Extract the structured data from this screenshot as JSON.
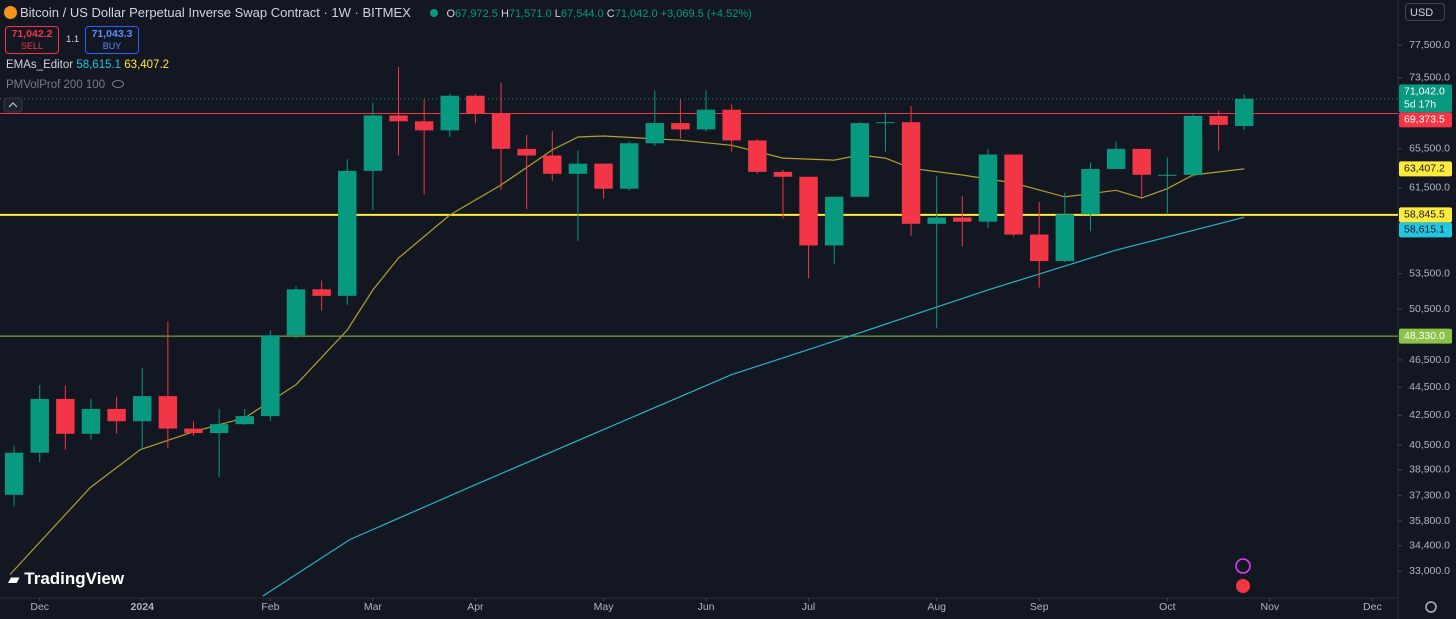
{
  "header": {
    "symbol": "Bitcoin / US Dollar Perpetual Inverse Swap Contract · 1W · BITMEX",
    "ohlc": [
      {
        "key": "O",
        "text": "67,972.5"
      },
      {
        "key": "H",
        "text": "71,571.0"
      },
      {
        "key": "L",
        "text": "67,544.0"
      },
      {
        "key": "C",
        "text": "71,042.0"
      }
    ],
    "change": "+3,069.5 (+4.52%)",
    "sell": {
      "price": "71,042.2",
      "label": "SELL"
    },
    "spread": "1.1",
    "buy": {
      "price": "71,043.3",
      "label": "BUY"
    },
    "indicators": [
      {
        "name": "EMAs_Editor",
        "values": [
          "58,615.1",
          "63,407.2"
        ]
      },
      {
        "name": "PMVolProf 200 100"
      }
    ],
    "currency": "USD",
    "brand": "TradingView"
  },
  "chart_data": {
    "type": "candlestick",
    "log": true,
    "ylim": [
      31600,
      83400
    ],
    "yticks": [
      {
        "value": 77500,
        "label": "77,500.0"
      },
      {
        "value": 73500,
        "label": "73,500.0"
      },
      {
        "value": 65500,
        "label": "65,500.0"
      },
      {
        "value": 61500,
        "label": "61,500.0"
      },
      {
        "value": 53500,
        "label": "53,500.0"
      },
      {
        "value": 50500,
        "label": "50,500.0"
      },
      {
        "value": 46500,
        "label": "46,500.0"
      },
      {
        "value": 44500,
        "label": "44,500.0"
      },
      {
        "value": 42500,
        "label": "42,500.0"
      },
      {
        "value": 40500,
        "label": "40,500.0"
      },
      {
        "value": 38900,
        "label": "38,900.0"
      },
      {
        "value": 37300,
        "label": "37,300.0"
      },
      {
        "value": 35800,
        "label": "35,800.0"
      },
      {
        "value": 34400,
        "label": "34,400.0"
      },
      {
        "value": 33000,
        "label": "33,000.0"
      }
    ],
    "xlim": [
      -0.55,
      54
    ],
    "xticks": [
      {
        "value": 1,
        "label": "Dec"
      },
      {
        "value": 5,
        "label": "2024"
      },
      {
        "value": 10,
        "label": "Feb"
      },
      {
        "value": 14,
        "label": "Mar"
      },
      {
        "value": 18,
        "label": "Apr"
      },
      {
        "value": 23,
        "label": "May"
      },
      {
        "value": 27,
        "label": "Jun"
      },
      {
        "value": 31,
        "label": "Jul"
      },
      {
        "value": 36,
        "label": "Aug"
      },
      {
        "value": 40,
        "label": "Sep"
      },
      {
        "value": 45,
        "label": "Oct"
      },
      {
        "value": 49,
        "label": "Nov"
      },
      {
        "value": 53,
        "label": "Dec"
      }
    ],
    "up_color": "#089981",
    "down_color": "#f23645",
    "open": [
      37360,
      40000,
      43650,
      41250,
      42950,
      42100,
      43850,
      41600,
      41300,
      41900,
      42450,
      48400,
      52150,
      51600,
      63200,
      69150,
      68500,
      67500,
      71400,
      69370,
      65500,
      64800,
      62900,
      63950,
      61400,
      66100,
      68300,
      67600,
      69800,
      66400,
      63100,
      62600,
      56000,
      60600,
      68300,
      68400,
      58000,
      58600,
      58200,
      64900,
      57000,
      54600,
      58900,
      63400,
      65500,
      62800,
      62800,
      69100,
      67972.5
    ],
    "high": [
      40450,
      44650,
      44600,
      43650,
      43800,
      45900,
      49500,
      42100,
      42950,
      42950,
      48800,
      52400,
      52900,
      64400,
      70600,
      74800,
      71000,
      71600,
      71600,
      72900,
      67000,
      67400,
      65300,
      63950,
      66300,
      72000,
      71000,
      72000,
      70400,
      66600,
      63300,
      62600,
      60600,
      68400,
      69500,
      70200,
      62700,
      60700,
      65500,
      64600,
      60100,
      61000,
      64100,
      66300,
      65500,
      64600,
      69300,
      69700,
      71571
    ],
    "low": [
      36650,
      39400,
      40200,
      40850,
      41250,
      40200,
      40300,
      41100,
      38450,
      41850,
      42100,
      48150,
      50400,
      50850,
      59300,
      64800,
      60800,
      66800,
      68300,
      61300,
      59400,
      62200,
      56400,
      60400,
      61200,
      65800,
      66600,
      67400,
      65200,
      62900,
      58500,
      53100,
      54300,
      60600,
      65200,
      56900,
      48950,
      55900,
      57600,
      56800,
      52300,
      54500,
      57300,
      63400,
      60600,
      58900,
      62600,
      65300,
      67544
    ],
    "close": [
      40000,
      43650,
      41250,
      42950,
      42100,
      43850,
      41600,
      41300,
      41900,
      42450,
      48400,
      52150,
      51600,
      63200,
      69150,
      68500,
      67500,
      71400,
      69370,
      65500,
      64800,
      62900,
      63950,
      61400,
      66100,
      68300,
      67600,
      69800,
      66400,
      63100,
      62600,
      56000,
      60600,
      68300,
      68400,
      58000,
      58600,
      58200,
      64900,
      57000,
      54600,
      58900,
      63400,
      65500,
      62800,
      62800,
      69100,
      68100,
      71042
    ],
    "lines": [
      {
        "color": "#b3a02e",
        "x": [
          -0.16,
          2.97,
          4.92,
          7.02,
          9.01,
          11,
          13,
          14,
          15,
          17,
          19,
          21,
          22,
          23,
          26,
          28,
          30,
          32,
          33,
          34,
          35,
          37,
          39,
          41,
          43,
          44,
          45,
          46,
          48
        ],
        "values": [
          32830,
          37800,
          40200,
          41400,
          42340,
          44670,
          48820,
          52100,
          54870,
          58830,
          61770,
          65390,
          66770,
          66880,
          66430,
          65880,
          64530,
          64320,
          64850,
          64530,
          63470,
          62780,
          61970,
          60590,
          61240,
          60480,
          61400,
          62780,
          63407.2
        ],
        "last_label": "63,407.2",
        "tag_color": "#ffeb3b",
        "tag_text": "#131722"
      },
      {
        "color": "#2ab3c4",
        "x": [
          9.7,
          13.1,
          18,
          23,
          28,
          33,
          38,
          43,
          48
        ],
        "values": [
          31700,
          34740,
          37980,
          41530,
          45410,
          48600,
          52100,
          55580,
          58615.1
        ],
        "last_label": "58,615.1",
        "tag_color": "#22c6e0",
        "tag_text": "#131722"
      }
    ],
    "hlines": [
      {
        "value": 69373.5,
        "label": "69,373.5",
        "color": "#f23645",
        "width": 1
      },
      {
        "value": 58845.5,
        "label": "58,845.5",
        "color": "#ffeb3b",
        "width": 2
      },
      {
        "value": 48330,
        "label": "48,330.0",
        "color": "#8bc34a",
        "width": 1
      }
    ],
    "last_price": {
      "value": 71042,
      "label": "71,042.0",
      "countdown": "5d 17h",
      "color": "#089981"
    }
  }
}
